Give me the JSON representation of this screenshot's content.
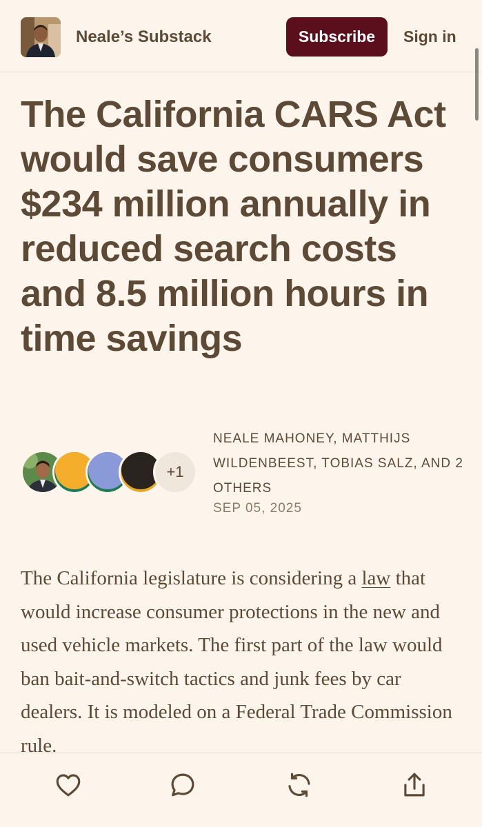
{
  "header": {
    "publication_name": "Neale’s Substack",
    "subscribe_label": "Subscribe",
    "signin_label": "Sign in"
  },
  "post": {
    "title": "The California CARS Act would save consumers $234 million annually in reduced search costs and 8.5 million hours in time savings",
    "authors": "NEALE MAHONEY, MATTHIJS WILDENBEEST, TOBIAS SALZ, AND 2 OTHERS",
    "date": "SEP 05, 2025",
    "extra_authors_badge": "+1",
    "body_before_link": "The California legislature is considering a ",
    "body_link": "law",
    "body_after_link": " that would increase consumer protections in the new and used vehicle markets. The first part of the law would ban bait-and-switch tactics and junk fees by car dealers. It is modeled on a Federal Trade Commission rule."
  },
  "actions": {
    "like_icon": "heart-icon",
    "comment_icon": "comment-icon",
    "restack_icon": "restack-icon",
    "share_icon": "share-icon"
  },
  "colors": {
    "background": "#fdf5ec",
    "text": "#5c4a37",
    "subscribe_bg": "#5b0f1c"
  }
}
